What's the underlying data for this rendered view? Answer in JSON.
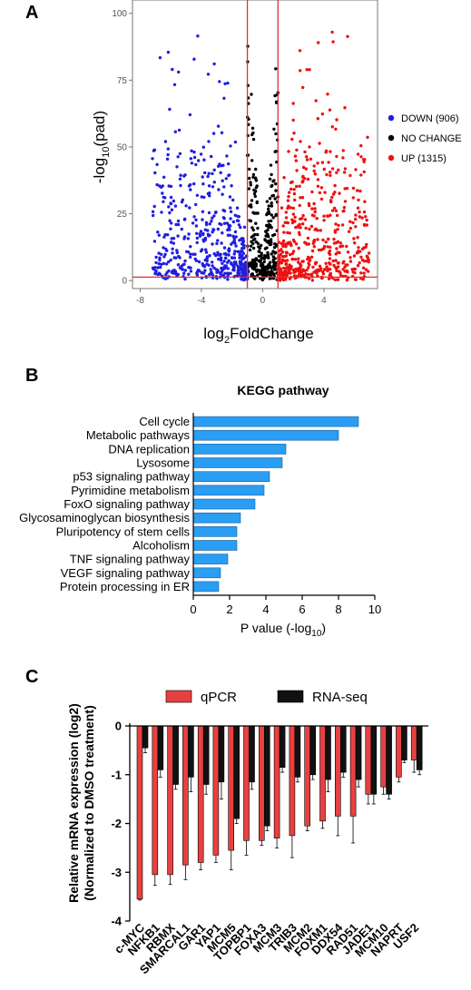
{
  "panel_labels": [
    "A",
    "B",
    "C"
  ],
  "chart_data": [
    {
      "type": "scatter",
      "panel": "A",
      "xlabel": "log2FoldChange",
      "ylabel": "-log10(pad)",
      "xticks": [
        "-8",
        "-4",
        "0",
        "4"
      ],
      "yticks": [
        "0",
        "25",
        "50",
        "75",
        "100"
      ],
      "xlim": [
        -8.5,
        7.5
      ],
      "ylim": [
        -3,
        105
      ],
      "thresholds": {
        "x": [
          -1,
          1
        ],
        "y": 1.3
      },
      "series": [
        {
          "name": "DOWN",
          "label": "DOWN",
          "count_label": "(906)",
          "color": "#1f1fe0"
        },
        {
          "name": "NO CHANGE",
          "label": "NO CHANGE",
          "count_label": "",
          "color": "#000000"
        },
        {
          "name": "UP",
          "label": "UP",
          "count_label": "(1315)",
          "color": "#ee1111"
        }
      ],
      "grid": false,
      "legend": "right"
    },
    {
      "type": "bar",
      "panel": "B",
      "orientation": "horizontal",
      "title": "KEGG pathway",
      "categories": [
        "Cell cycle",
        "Metabolic pathways",
        "DNA replication",
        "Lysosome",
        "p53 signaling pathway",
        "Pyrimidine metabolism",
        "FoxO signaling pathway",
        "Glycosaminoglycan biosynthesis",
        "Pluripotency of stem cells",
        "Alcoholism",
        "TNF signaling pathway",
        "VEGF signaling pathway",
        "Protein processing in ER"
      ],
      "values": [
        9.1,
        8.0,
        5.1,
        4.9,
        4.2,
        3.9,
        3.4,
        2.6,
        2.4,
        2.4,
        1.9,
        1.5,
        1.4
      ],
      "xlabel": "P value (-log10)",
      "xticks": [
        "0",
        "2",
        "4",
        "6",
        "8",
        "10"
      ],
      "xlim": [
        0,
        10
      ],
      "bar_color": "#2a9df4"
    },
    {
      "type": "bar",
      "panel": "C",
      "ylabel_line1": "Relative mRNA expression (log2)",
      "ylabel_line2": "(Normalized to DMSO treatment)",
      "ylim": [
        -4,
        0
      ],
      "yticks": [
        "0",
        "-1",
        "-2",
        "-3",
        "-4"
      ],
      "categories": [
        "c-MYC",
        "NFKB1",
        "RBMX",
        "SMARCAL1",
        "GAR1",
        "YAP1",
        "MCM5",
        "TOPBP1",
        "FOXA3",
        "MCM3",
        "TRIB3",
        "MCM2",
        "FOXM1",
        "DDX54",
        "RAD51",
        "JADE1",
        "MCM10",
        "NAPRT",
        "USF2"
      ],
      "series": [
        {
          "name": "qPCR",
          "color": "#e84040",
          "values": [
            -3.55,
            -3.05,
            -3.05,
            -2.85,
            -2.8,
            -2.65,
            -2.55,
            -2.35,
            -2.35,
            -2.3,
            -2.25,
            -2.05,
            -1.95,
            -1.85,
            -1.85,
            -1.4,
            -1.25,
            -1.05,
            -0.7
          ],
          "errors": [
            0.02,
            0.22,
            0.2,
            0.3,
            0.15,
            0.15,
            0.4,
            0.3,
            0.1,
            0.2,
            0.45,
            0.1,
            0.15,
            0.4,
            0.55,
            0.2,
            0.15,
            0.1,
            0.25
          ]
        },
        {
          "name": "RNA-seq",
          "color": "#111111",
          "values": [
            -0.45,
            -0.9,
            -1.2,
            -1.05,
            -1.2,
            -1.15,
            -1.9,
            -1.15,
            -2.05,
            -0.85,
            -1.05,
            -1.0,
            -1.1,
            -0.95,
            -1.1,
            -1.4,
            -1.4,
            -0.7,
            -0.9
          ],
          "errors": [
            0.1,
            0.15,
            0.1,
            0.3,
            0.2,
            0.35,
            0.1,
            0.15,
            0.1,
            0.1,
            0.1,
            0.1,
            0.25,
            0.1,
            0.15,
            0.2,
            0.1,
            0.05,
            0.1
          ]
        }
      ],
      "legend": "top"
    }
  ]
}
